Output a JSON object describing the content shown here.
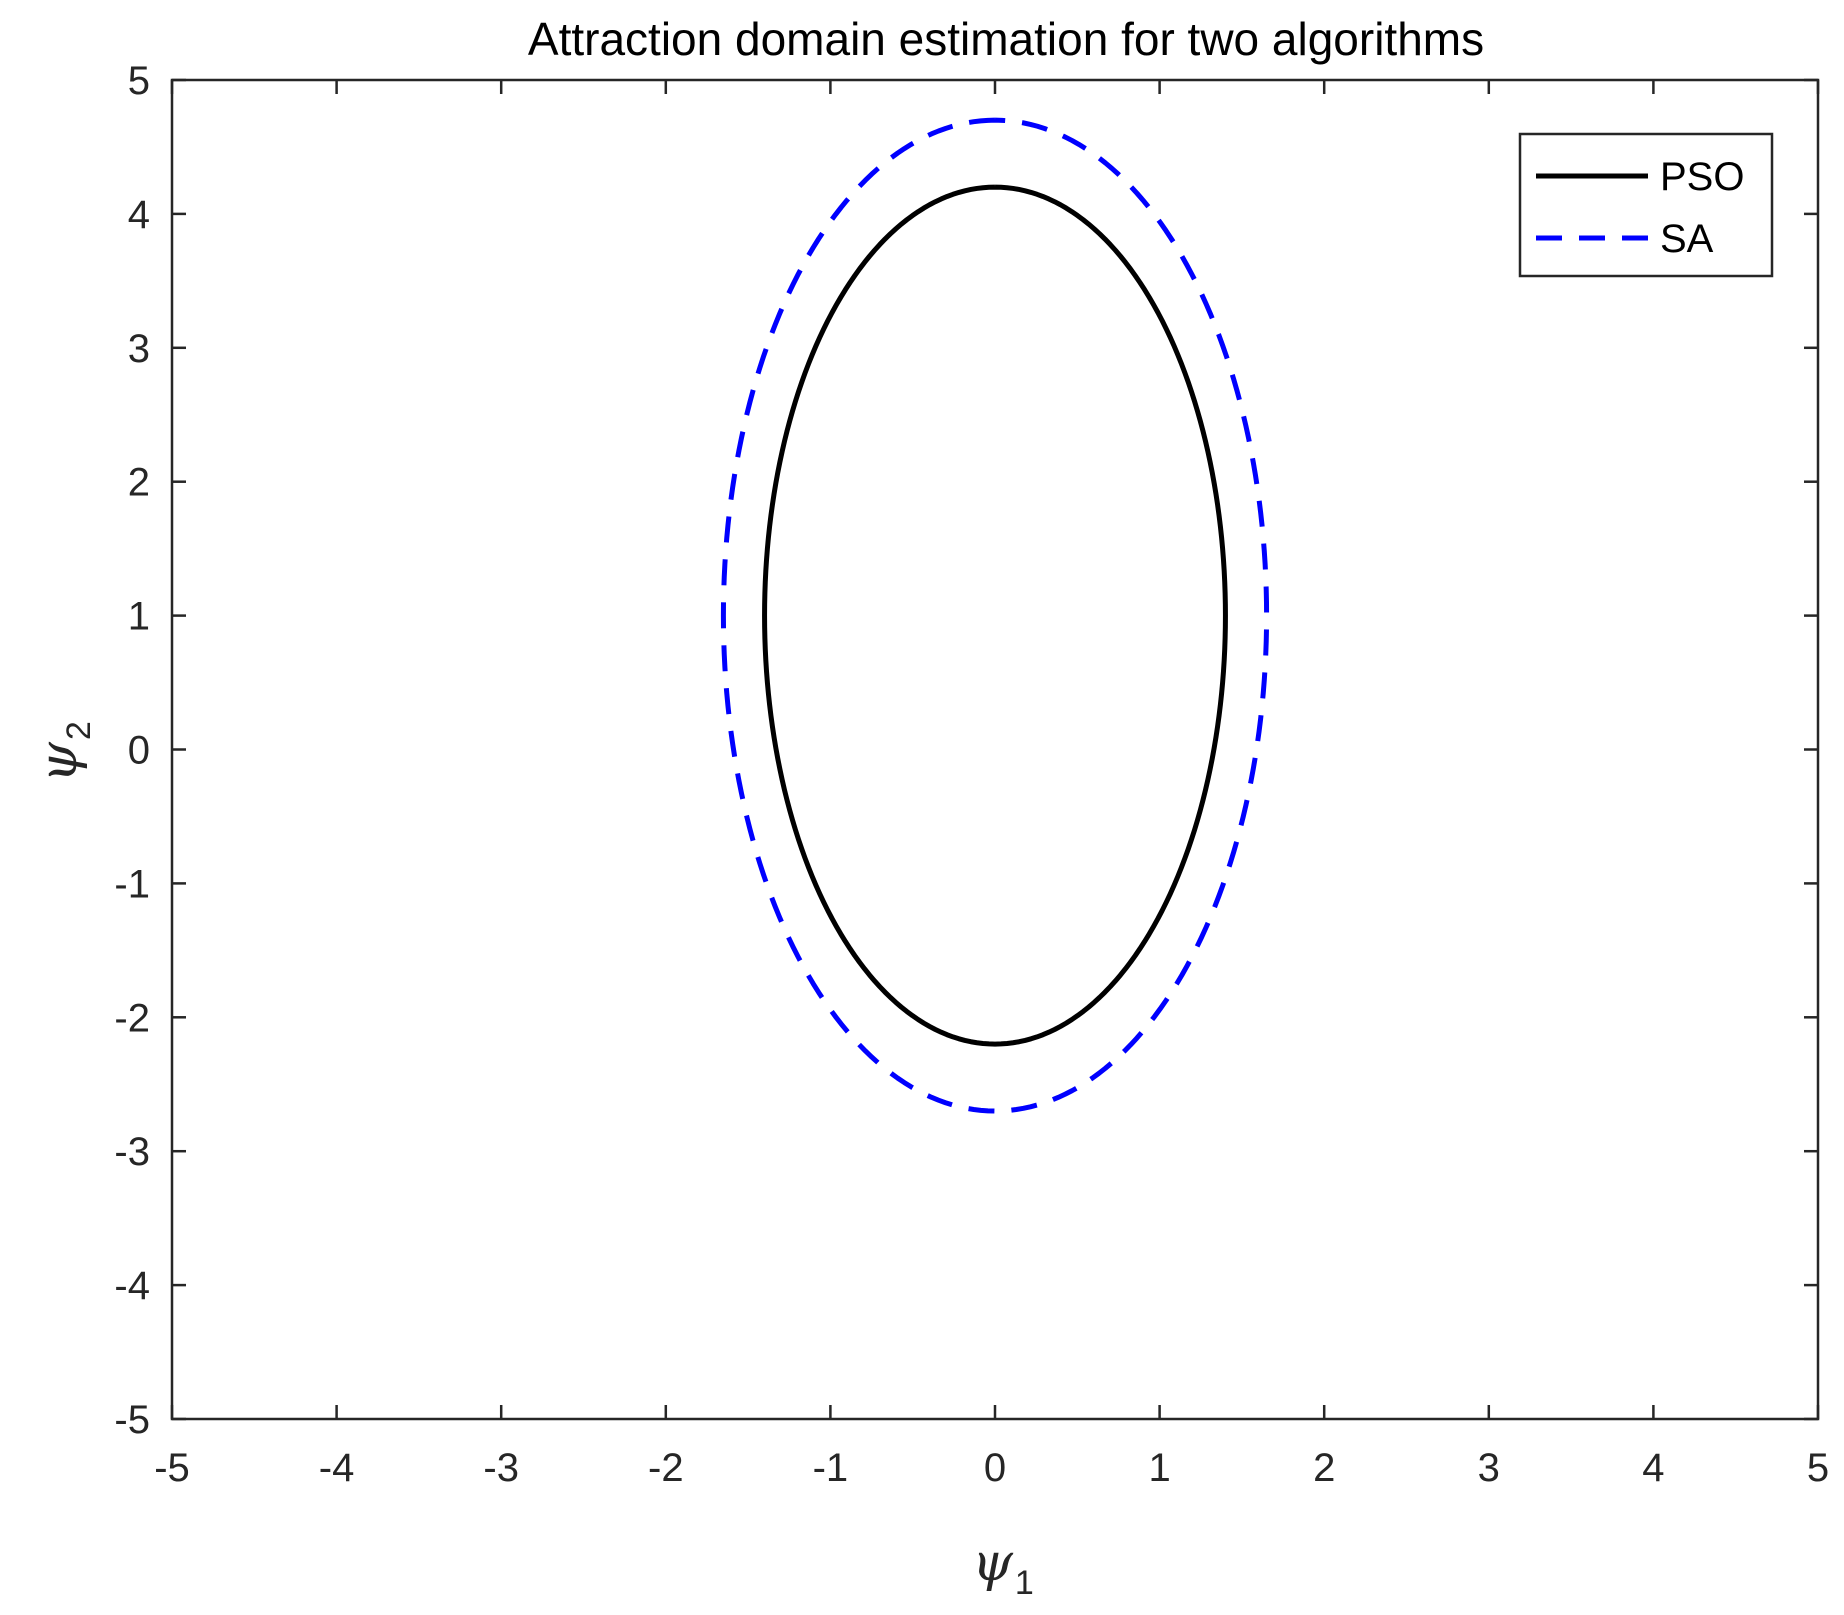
{
  "chart_data": {
    "type": "line",
    "title": "Attraction domain estimation for two algorithms",
    "xlabel": {
      "symbol": "ψ",
      "subscript": "1"
    },
    "ylabel": {
      "symbol": "ψ",
      "subscript": "2"
    },
    "xlim": [
      -5,
      5
    ],
    "ylim": [
      -5,
      5
    ],
    "xticks": [
      "-5",
      "-4",
      "-3",
      "-2",
      "-1",
      "0",
      "1",
      "2",
      "3",
      "4",
      "5"
    ],
    "yticks": [
      "-5",
      "-4",
      "-3",
      "-2",
      "-1",
      "0",
      "1",
      "2",
      "3",
      "4",
      "5"
    ],
    "grid": false,
    "legend_position": "top-right",
    "series": [
      {
        "name": "PSO",
        "shape": "ellipse",
        "center": [
          0,
          1
        ],
        "radius_x": 1.4,
        "radius_y": 3.2,
        "color": "#000000",
        "style": "solid"
      },
      {
        "name": "SA",
        "shape": "ellipse",
        "center": [
          0,
          1
        ],
        "radius_x": 1.65,
        "radius_y": 3.7,
        "color": "#0000ff",
        "style": "dashed"
      }
    ]
  }
}
